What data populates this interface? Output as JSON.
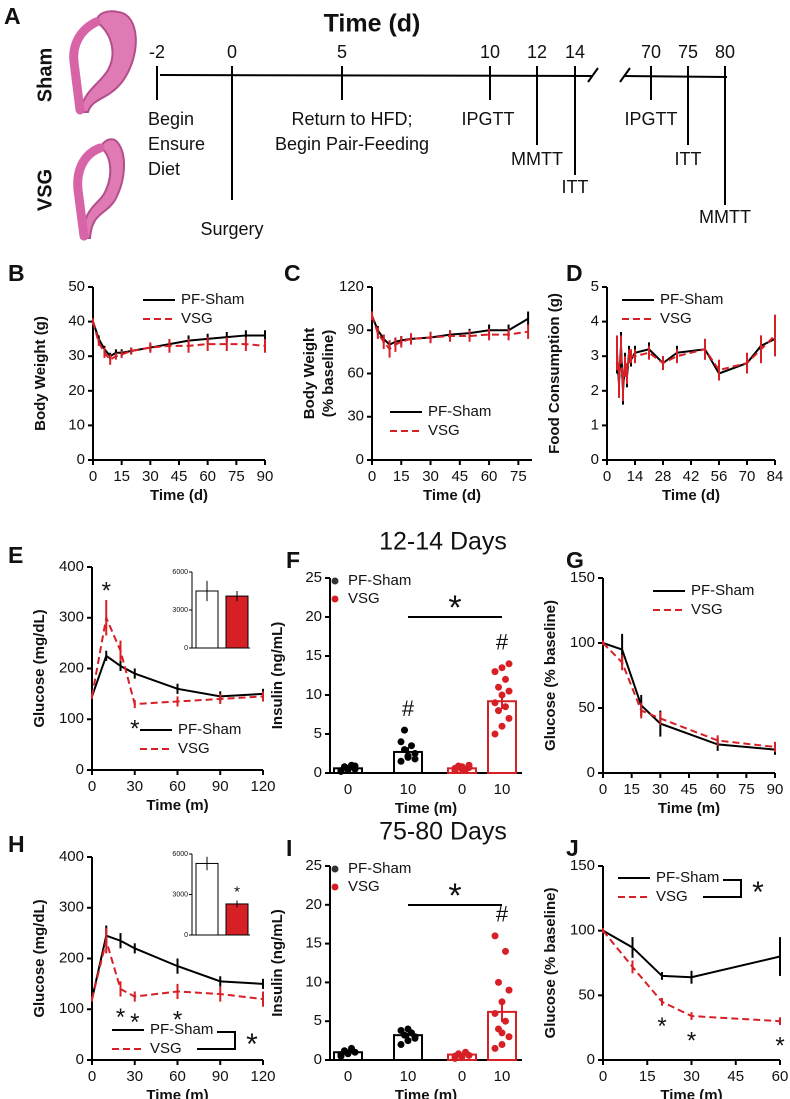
{
  "panel_labels": [
    "A",
    "B",
    "C",
    "D",
    "E",
    "F",
    "G",
    "H",
    "I",
    "J"
  ],
  "section_titles": [
    "12-14 Days",
    "75-80 Days"
  ],
  "timeline": {
    "title": "Time (d)",
    "ticks": [
      -2,
      0,
      5,
      10,
      12,
      14,
      70,
      75,
      80
    ],
    "groups": [
      "Sham",
      "VSG"
    ],
    "events": [
      {
        "day": -2,
        "lines": [
          "Begin",
          "Ensure",
          "Diet"
        ]
      },
      {
        "day": 0,
        "lines": [
          "Surgery"
        ]
      },
      {
        "day": 5,
        "lines": [
          "Return to HFD;",
          "Begin Pair-Feeding"
        ]
      },
      {
        "day": 10,
        "lines": [
          "IPGTT"
        ]
      },
      {
        "day": 12,
        "lines": [
          "MMTT"
        ]
      },
      {
        "day": 14,
        "lines": [
          "ITT"
        ]
      },
      {
        "day": 70,
        "lines": [
          "IPGTT"
        ]
      },
      {
        "day": 75,
        "lines": [
          "ITT"
        ]
      },
      {
        "day": 80,
        "lines": [
          "MMTT"
        ]
      }
    ]
  },
  "chart_data": [
    {
      "type": "line",
      "y_label": [
        "Body Weight (g)"
      ],
      "x_label": "Time (d)",
      "xlim": [
        0,
        90
      ],
      "xticks": [
        0,
        15,
        30,
        45,
        60,
        75,
        90
      ],
      "ylim": [
        0,
        50
      ],
      "yticks": [
        0,
        10,
        20,
        30,
        40,
        50
      ],
      "legend": "upper right",
      "series": [
        {
          "name": "PF-Sham",
          "color": "#000000",
          "line_style": "solid",
          "x": [
            0,
            3,
            6,
            9,
            12,
            15,
            20,
            30,
            40,
            50,
            60,
            70,
            80,
            90
          ],
          "values": [
            40,
            35,
            32,
            30,
            31,
            31,
            31.5,
            32.5,
            33.5,
            34.5,
            35,
            35.5,
            36,
            36
          ],
          "errors": [
            1,
            1,
            1,
            1,
            1,
            1,
            1,
            1,
            1,
            1.5,
            1.5,
            1.5,
            1.5,
            1.5
          ]
        },
        {
          "name": "VSG",
          "color": "#d71f26",
          "line_style": "dashed",
          "x": [
            0,
            3,
            6,
            9,
            12,
            15,
            20,
            30,
            40,
            50,
            60,
            70,
            80,
            90
          ],
          "values": [
            40,
            34,
            31,
            29,
            30,
            30.5,
            31.5,
            32.5,
            33,
            33,
            33.5,
            33.5,
            33.5,
            33
          ],
          "errors": [
            1,
            1,
            1.5,
            1.5,
            1,
            1,
            1,
            1.5,
            2,
            2,
            2,
            2,
            2,
            2
          ]
        }
      ]
    },
    {
      "type": "line",
      "y_label": [
        "Body Weight",
        "(% baseline)"
      ],
      "x_label": "Time (d)",
      "xlim": [
        0,
        82
      ],
      "xticks": [
        0,
        15,
        30,
        45,
        60,
        75
      ],
      "ylim": [
        0,
        120
      ],
      "yticks": [
        0,
        30,
        60,
        90,
        120
      ],
      "legend": "lower center",
      "series": [
        {
          "name": "PF-Sham",
          "color": "#000000",
          "line_style": "solid",
          "x": [
            0,
            3,
            6,
            9,
            12,
            15,
            20,
            30,
            40,
            50,
            60,
            70,
            80
          ],
          "values": [
            100,
            90,
            84,
            80,
            82,
            83,
            84,
            85,
            87,
            88,
            90,
            90,
            98
          ],
          "errors": [
            3,
            3,
            3,
            3,
            3,
            3,
            3,
            3,
            3,
            3,
            4,
            4,
            5
          ]
        },
        {
          "name": "VSG",
          "color": "#d71f26",
          "line_style": "dashed",
          "x": [
            0,
            3,
            6,
            9,
            12,
            15,
            20,
            30,
            40,
            50,
            60,
            70,
            80
          ],
          "values": [
            100,
            88,
            82,
            77,
            80,
            82,
            84,
            85,
            86,
            86,
            87,
            87,
            89
          ],
          "errors": [
            3,
            4,
            5,
            6,
            5,
            4,
            4,
            4,
            4,
            4,
            4,
            4,
            5
          ]
        }
      ]
    },
    {
      "type": "line",
      "y_label": [
        "Food Consumption (g)"
      ],
      "x_label": "Time (d)",
      "xlim": [
        0,
        84
      ],
      "xticks": [
        0,
        14,
        28,
        42,
        56,
        70,
        84
      ],
      "ylim": [
        0,
        5
      ],
      "yticks": [
        0,
        1,
        2,
        3,
        4,
        5
      ],
      "legend": "upper center",
      "series": [
        {
          "name": "PF-Sham",
          "color": "#000000",
          "line_style": "solid",
          "x": [
            5,
            6,
            7,
            8,
            9,
            10,
            11,
            12,
            14,
            21,
            28,
            35,
            49,
            56,
            70,
            77,
            84
          ],
          "values": [
            3.0,
            2.2,
            3.3,
            2.0,
            2.8,
            2.4,
            3.1,
            2.9,
            3.1,
            3.2,
            2.8,
            3.1,
            3.2,
            2.5,
            2.8,
            3.3,
            3.5
          ],
          "errors": [
            0.5,
            0.4,
            0.4,
            0.4,
            0.3,
            0.3,
            0.2,
            0.2,
            0.2,
            0.2,
            0.2,
            0.2,
            0.3,
            0.2,
            0.2,
            0.3,
            0.5
          ]
        },
        {
          "name": "VSG",
          "color": "#d71f26",
          "line_style": "dashed",
          "x": [
            5,
            6,
            7,
            8,
            9,
            10,
            11,
            12,
            14,
            21,
            28,
            35,
            49,
            56,
            70,
            77,
            84
          ],
          "values": [
            3.1,
            2.3,
            3.2,
            2.1,
            2.7,
            2.5,
            3.0,
            3.0,
            3.0,
            3.1,
            2.8,
            3.0,
            3.2,
            2.6,
            2.8,
            3.2,
            3.6
          ],
          "errors": [
            0.5,
            0.5,
            0.4,
            0.4,
            0.3,
            0.3,
            0.2,
            0.2,
            0.2,
            0.2,
            0.2,
            0.2,
            0.3,
            0.3,
            0.3,
            0.4,
            0.6
          ]
        }
      ]
    },
    {
      "type": "line",
      "y_label": [
        "Glucose (mg/dL)"
      ],
      "x_label": "Time (m)",
      "xlim": [
        0,
        120
      ],
      "xticks": [
        0,
        30,
        60,
        90,
        120
      ],
      "ylim": [
        0,
        400
      ],
      "yticks": [
        0,
        100,
        200,
        300,
        400
      ],
      "legend": "lower right",
      "series": [
        {
          "name": "PF-Sham",
          "color": "#000000",
          "line_style": "solid",
          "x": [
            0,
            10,
            20,
            30,
            60,
            90,
            120
          ],
          "values": [
            145,
            225,
            205,
            190,
            160,
            145,
            150
          ],
          "errors": [
            5,
            10,
            10,
            10,
            10,
            10,
            10
          ]
        },
        {
          "name": "VSG",
          "color": "#d71f26",
          "line_style": "dashed",
          "x": [
            0,
            10,
            20,
            30,
            60,
            90,
            120
          ],
          "values": [
            145,
            300,
            235,
            130,
            135,
            140,
            145
          ],
          "errors": [
            5,
            35,
            20,
            8,
            10,
            10,
            10
          ],
          "markers": [
            null,
            "*",
            null,
            "*",
            null,
            null,
            null
          ]
        }
      ],
      "inset": {
        "type": "bar",
        "ylim": [
          0,
          6000
        ],
        "yticks": [
          0,
          3000,
          6000
        ],
        "categories": [
          null,
          null
        ],
        "values": [
          4500,
          4100
        ],
        "errors": [
          800,
          400
        ],
        "colors": [
          "#ffffff",
          "#d71f26"
        ]
      }
    },
    {
      "type": "bar",
      "y_label": [
        "Insulin (ng/mL)"
      ],
      "x_label": "Time (m)",
      "ylim": [
        0,
        25
      ],
      "yticks": [
        0,
        5,
        10,
        15,
        20,
        25
      ],
      "categories": [
        "0",
        "10",
        "0",
        "10"
      ],
      "values": [
        0.6,
        2.7,
        0.6,
        9.2
      ],
      "errors": [
        0.2,
        0.6,
        0.2,
        1.0
      ],
      "colors": [
        "#000000",
        "#000000",
        "#d71f26",
        "#d71f26"
      ],
      "bar_fill": "#ffffff",
      "markers": [
        null,
        "#",
        null,
        "#"
      ],
      "significance": "*",
      "points": [
        [
          0.2,
          0.4,
          0.5,
          0.8,
          1.0,
          0.3,
          0.6,
          0.9
        ],
        [
          1.5,
          2.0,
          2.5,
          3.0,
          3.5,
          4.0,
          2.2,
          1.8,
          5.5
        ],
        [
          0.3,
          0.5,
          0.7,
          0.9,
          0.4,
          0.6,
          0.8,
          1.0
        ],
        [
          5,
          6,
          7,
          8,
          8.5,
          9,
          10,
          10.5,
          11,
          12,
          13,
          13.5,
          14
        ]
      ],
      "legend_entries": [
        {
          "name": "PF-Sham",
          "color": "#333333"
        },
        {
          "name": "VSG",
          "color": "#d71f26"
        }
      ]
    },
    {
      "type": "line",
      "y_label": [
        "Glucose (% baseline)"
      ],
      "x_label": "Time (m)",
      "xlim": [
        0,
        90
      ],
      "xticks": [
        0,
        15,
        30,
        45,
        60,
        75,
        90
      ],
      "ylim": [
        0,
        150
      ],
      "yticks": [
        0,
        50,
        100,
        150
      ],
      "legend": "upper right",
      "series": [
        {
          "name": "PF-Sham",
          "color": "#000000",
          "line_style": "solid",
          "x": [
            0,
            10,
            20,
            30,
            60,
            90
          ],
          "values": [
            100,
            95,
            52,
            38,
            22,
            18
          ],
          "errors": [
            2,
            12,
            8,
            10,
            5,
            4
          ]
        },
        {
          "name": "VSG",
          "color": "#d71f26",
          "line_style": "dashed",
          "x": [
            0,
            10,
            20,
            30,
            60,
            90
          ],
          "values": [
            100,
            85,
            48,
            42,
            25,
            20
          ],
          "errors": [
            2,
            6,
            6,
            5,
            4,
            4
          ]
        }
      ]
    },
    {
      "type": "line",
      "y_label": [
        "Glucose (mg/dL)"
      ],
      "x_label": "Time (m)",
      "xlim": [
        0,
        120
      ],
      "xticks": [
        0,
        30,
        60,
        90,
        120
      ],
      "ylim": [
        0,
        400
      ],
      "yticks": [
        0,
        100,
        200,
        300,
        400
      ],
      "legend": "lower left",
      "legend_significance": "*",
      "series": [
        {
          "name": "PF-Sham",
          "color": "#000000",
          "line_style": "solid",
          "x": [
            0,
            10,
            20,
            30,
            60,
            90,
            120
          ],
          "values": [
            120,
            245,
            235,
            220,
            185,
            155,
            150
          ],
          "errors": [
            5,
            20,
            15,
            10,
            15,
            10,
            10
          ]
        },
        {
          "name": "VSG",
          "color": "#d71f26",
          "line_style": "dashed",
          "x": [
            0,
            10,
            20,
            30,
            60,
            90,
            120
          ],
          "values": [
            120,
            235,
            140,
            125,
            135,
            130,
            120
          ],
          "errors": [
            5,
            25,
            15,
            10,
            15,
            15,
            15
          ],
          "markers": [
            null,
            null,
            "*",
            "*",
            "*",
            null,
            null
          ]
        }
      ],
      "inset": {
        "type": "bar",
        "ylim": [
          0,
          6000
        ],
        "yticks": [
          0,
          3000,
          6000
        ],
        "categories": [
          null,
          null
        ],
        "values": [
          5300,
          2300
        ],
        "errors": [
          500,
          250
        ],
        "colors": [
          "#ffffff",
          "#d71f26"
        ],
        "markers": [
          null,
          "*"
        ]
      }
    },
    {
      "type": "bar",
      "y_label": [
        "Insulin (ng/mL)"
      ],
      "x_label": "Time (m)",
      "ylim": [
        0,
        25
      ],
      "yticks": [
        0,
        5,
        10,
        15,
        20,
        25
      ],
      "categories": [
        "0",
        "10",
        "0",
        "10"
      ],
      "values": [
        1.0,
        3.2,
        0.7,
        6.2
      ],
      "errors": [
        0.2,
        0.3,
        0.2,
        1.3
      ],
      "colors": [
        "#000000",
        "#000000",
        "#d71f26",
        "#d71f26"
      ],
      "bar_fill": "#ffffff",
      "markers": [
        null,
        null,
        null,
        "#"
      ],
      "significance": "*",
      "points": [
        [
          0.5,
          0.8,
          1.0,
          1.2,
          1.5,
          0.7,
          0.9
        ],
        [
          2.0,
          2.5,
          3.0,
          3.2,
          3.5,
          3.8,
          4.0,
          2.8
        ],
        [
          0.2,
          0.4,
          0.6,
          0.8,
          1.0,
          0.5
        ],
        [
          1.5,
          2.0,
          3.0,
          4.0,
          5.0,
          6.0,
          7.5,
          9.0,
          10.0,
          14.0,
          16.0,
          3.5
        ]
      ],
      "legend_entries": [
        {
          "name": "PF-Sham",
          "color": "#333333"
        },
        {
          "name": "VSG",
          "color": "#d71f26"
        }
      ]
    },
    {
      "type": "line",
      "y_label": [
        "Glucose (% baseline)"
      ],
      "x_label": "Time (m)",
      "xlim": [
        0,
        60
      ],
      "xticks": [
        0,
        15,
        30,
        45,
        60
      ],
      "ylim": [
        0,
        150
      ],
      "yticks": [
        0,
        50,
        100,
        150
      ],
      "legend": "upper left",
      "legend_significance": "*",
      "series": [
        {
          "name": "PF-Sham",
          "color": "#000000",
          "line_style": "solid",
          "x": [
            0,
            10,
            20,
            30,
            60
          ],
          "values": [
            100,
            87,
            65,
            64,
            80
          ],
          "errors": [
            2,
            8,
            3,
            5,
            15
          ]
        },
        {
          "name": "VSG",
          "color": "#d71f26",
          "line_style": "dashed",
          "x": [
            0,
            10,
            20,
            30,
            60
          ],
          "values": [
            100,
            72,
            45,
            34,
            30
          ],
          "errors": [
            2,
            5,
            3,
            3,
            3
          ],
          "markers": [
            null,
            null,
            "*",
            "*",
            "*"
          ]
        }
      ]
    }
  ]
}
